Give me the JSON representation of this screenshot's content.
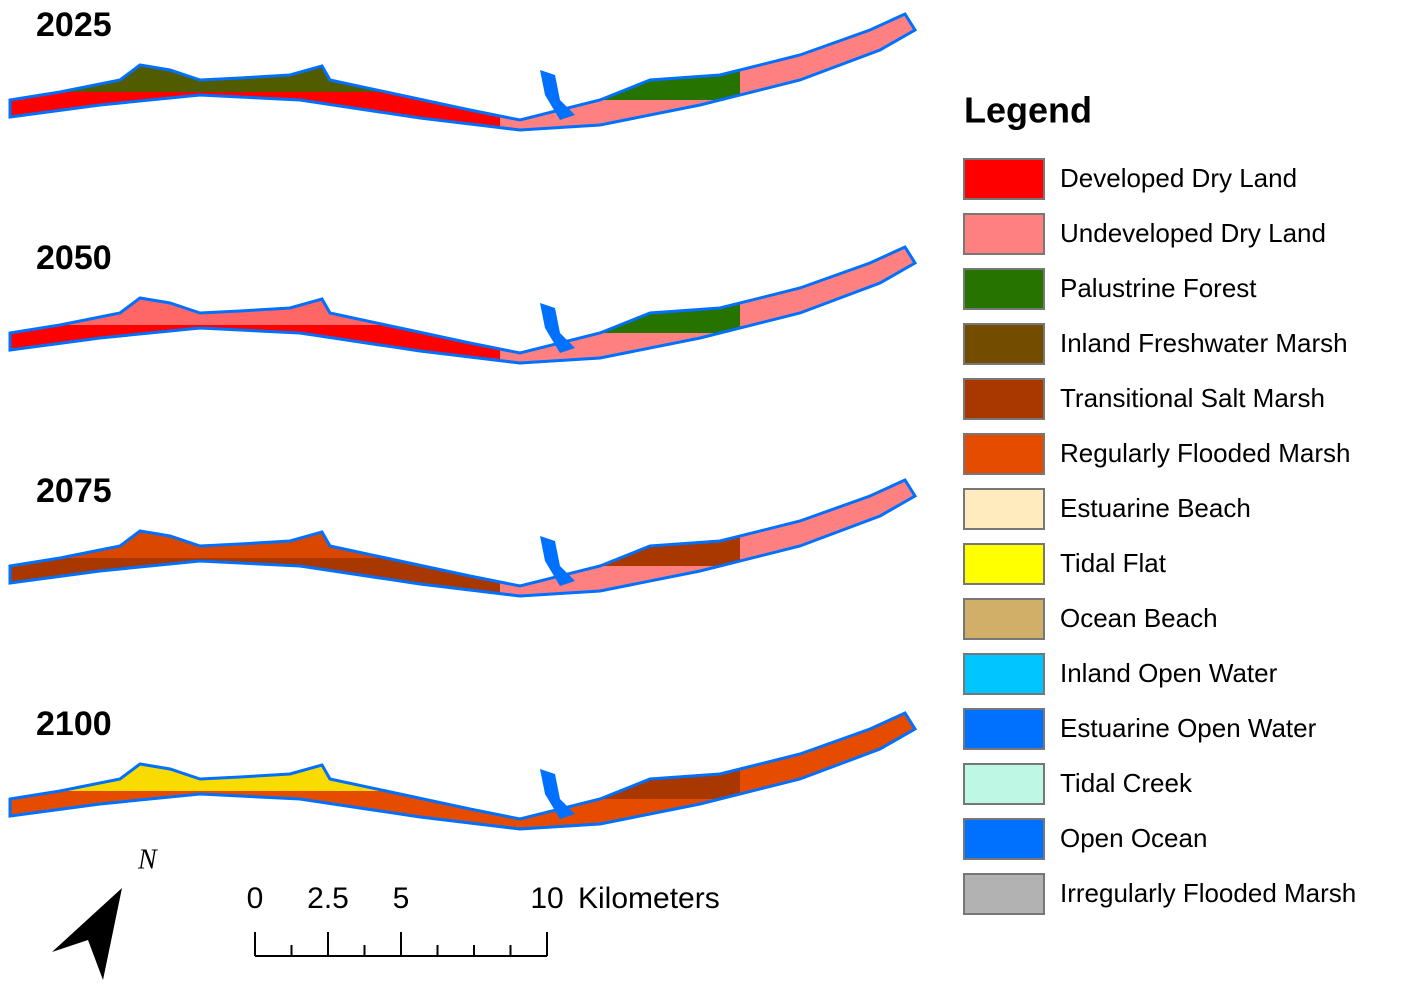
{
  "panels": [
    {
      "year": "2025"
    },
    {
      "year": "2050"
    },
    {
      "year": "2075"
    },
    {
      "year": "2100"
    }
  ],
  "legend": {
    "title": "Legend",
    "items": [
      {
        "label": "Developed Dry Land",
        "color": "#ff0000"
      },
      {
        "label": "Undeveloped Dry Land",
        "color": "#ff8080"
      },
      {
        "label": "Palustrine Forest",
        "color": "#267300"
      },
      {
        "label": "Inland Freshwater Marsh",
        "color": "#734c00"
      },
      {
        "label": "Transitional Salt Marsh",
        "color": "#a83800"
      },
      {
        "label": "Regularly Flooded Marsh",
        "color": "#e64c00"
      },
      {
        "label": "Estuarine Beach",
        "color": "#ffebbe"
      },
      {
        "label": "Tidal Flat",
        "color": "#ffff00"
      },
      {
        "label": "Ocean Beach",
        "color": "#d1af69"
      },
      {
        "label": "Inland Open Water",
        "color": "#00c5ff"
      },
      {
        "label": "Estuarine Open Water",
        "color": "#0070ff"
      },
      {
        "label": "Tidal Creek",
        "color": "#bef8e4"
      },
      {
        "label": "Open Ocean",
        "color": "#0070ff"
      },
      {
        "label": "Irregularly Flooded Marsh",
        "color": "#b2b2b2"
      }
    ]
  },
  "north_arrow": "N",
  "scale_bar": {
    "ticks": [
      0,
      2.5,
      5,
      10
    ],
    "unit": "Kilometers"
  }
}
